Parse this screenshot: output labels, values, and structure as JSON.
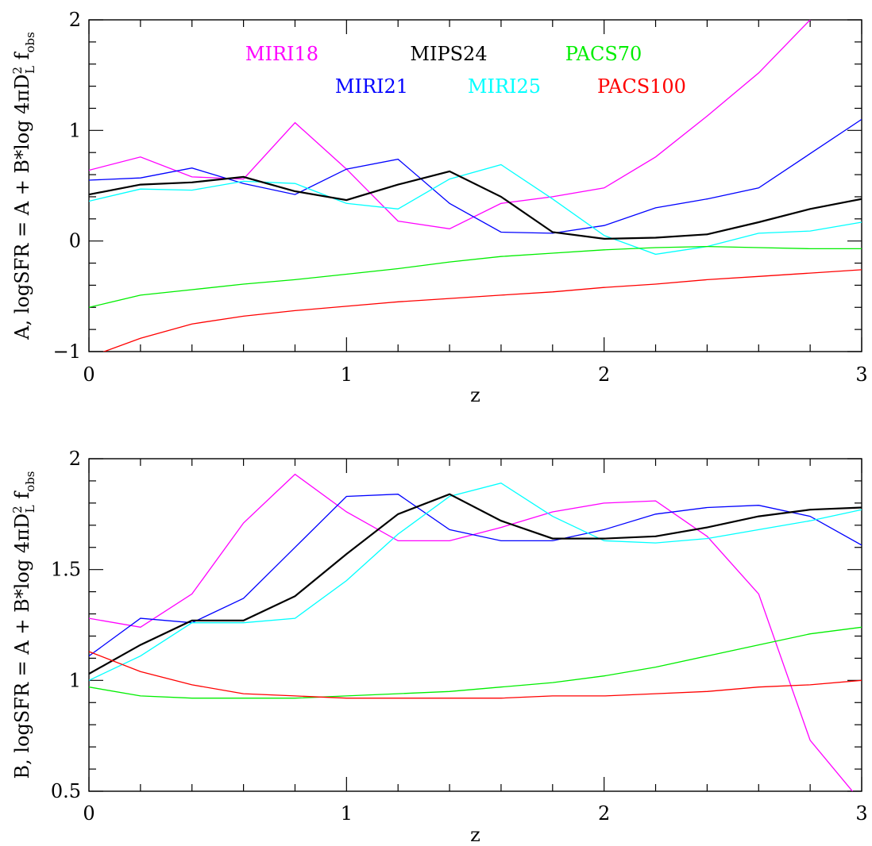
{
  "chart_data": [
    {
      "type": "line",
      "ylabel_parts": {
        "prefix": "A, logSFR = A + B*log 4",
        "pi": "π",
        "d": "D",
        "sup": "2",
        "sub": "L",
        "f": " f",
        "fsub": "obs"
      },
      "xlabel": "z",
      "xlim": [
        0,
        3
      ],
      "ylim": [
        -1,
        2
      ],
      "xticks": [
        0,
        1,
        2,
        3
      ],
      "yticks": [
        -1,
        0,
        1,
        2
      ],
      "xtick_labels": [
        "0",
        "1",
        "2",
        "3"
      ],
      "ytick_labels": [
        "−1",
        "0",
        "1",
        "2"
      ],
      "legend": [
        {
          "name": "MIRI18",
          "color": "#ff00ff"
        },
        {
          "name": "MIPS24",
          "color": "#000000"
        },
        {
          "name": "PACS70",
          "color": "#00ee00"
        },
        {
          "name": "MIRI21",
          "color": "#0000ff"
        },
        {
          "name": "MIRI25",
          "color": "#00ffff"
        },
        {
          "name": "PACS100",
          "color": "#ff0000"
        }
      ],
      "x": [
        0,
        0.2,
        0.4,
        0.6,
        0.8,
        1.0,
        1.2,
        1.4,
        1.6,
        1.8,
        2.0,
        2.2,
        2.4,
        2.6,
        2.8,
        3.0
      ],
      "series": [
        {
          "name": "MIRI18",
          "color": "#ff00ff",
          "width": 1.3,
          "values": [
            0.64,
            0.76,
            0.58,
            0.56,
            1.07,
            0.65,
            0.18,
            0.11,
            0.34,
            0.4,
            0.48,
            0.76,
            1.13,
            1.52,
            2.0,
            2.35
          ]
        },
        {
          "name": "MIRI21",
          "color": "#0000ff",
          "width": 1.3,
          "values": [
            0.55,
            0.57,
            0.66,
            0.52,
            0.42,
            0.65,
            0.74,
            0.34,
            0.08,
            0.07,
            0.14,
            0.3,
            0.38,
            0.48,
            0.79,
            1.1
          ]
        },
        {
          "name": "MIRI25",
          "color": "#00ffff",
          "width": 1.3,
          "values": [
            0.36,
            0.47,
            0.46,
            0.54,
            0.52,
            0.34,
            0.29,
            0.56,
            0.69,
            0.38,
            0.05,
            -0.12,
            -0.05,
            0.07,
            0.09,
            0.17
          ]
        },
        {
          "name": "MIPS24",
          "color": "#000000",
          "width": 2.2,
          "values": [
            0.42,
            0.51,
            0.53,
            0.58,
            0.45,
            0.37,
            0.51,
            0.63,
            0.4,
            0.08,
            0.02,
            0.03,
            0.06,
            0.17,
            0.29,
            0.38
          ]
        },
        {
          "name": "PACS70",
          "color": "#00ee00",
          "width": 1.3,
          "values": [
            -0.6,
            -0.49,
            -0.44,
            -0.39,
            -0.35,
            -0.3,
            -0.25,
            -0.19,
            -0.14,
            -0.11,
            -0.08,
            -0.06,
            -0.05,
            -0.06,
            -0.07,
            -0.07
          ]
        },
        {
          "name": "PACS100",
          "color": "#ff0000",
          "width": 1.3,
          "values": [
            -1.05,
            -0.88,
            -0.75,
            -0.68,
            -0.63,
            -0.59,
            -0.55,
            -0.52,
            -0.49,
            -0.46,
            -0.42,
            -0.39,
            -0.35,
            -0.32,
            -0.29,
            -0.26
          ]
        }
      ]
    },
    {
      "type": "line",
      "ylabel_parts": {
        "prefix": "B, logSFR = A + B*log 4",
        "pi": "π",
        "d": "D",
        "sup": "2",
        "sub": "L",
        "f": " f",
        "fsub": "obs"
      },
      "xlabel": "z",
      "xlim": [
        0,
        3
      ],
      "ylim": [
        0.5,
        2
      ],
      "xticks": [
        0,
        1,
        2,
        3
      ],
      "yticks": [
        0.5,
        1,
        1.5,
        2
      ],
      "xtick_labels": [
        "0",
        "1",
        "2",
        "3"
      ],
      "ytick_labels": [
        "0.5",
        "1",
        "1.5",
        "2"
      ],
      "x": [
        0,
        0.2,
        0.4,
        0.6,
        0.8,
        1.0,
        1.2,
        1.4,
        1.6,
        1.8,
        2.0,
        2.2,
        2.4,
        2.6,
        2.8,
        3.0
      ],
      "series": [
        {
          "name": "MIRI18",
          "color": "#ff00ff",
          "width": 1.3,
          "values": [
            1.28,
            1.24,
            1.39,
            1.71,
            1.93,
            1.76,
            1.63,
            1.63,
            1.69,
            1.76,
            1.8,
            1.81,
            1.65,
            1.39,
            0.73,
            0.45
          ]
        },
        {
          "name": "MIRI21",
          "color": "#0000ff",
          "width": 1.3,
          "values": [
            1.11,
            1.28,
            1.26,
            1.37,
            1.6,
            1.83,
            1.84,
            1.68,
            1.63,
            1.63,
            1.68,
            1.75,
            1.78,
            1.79,
            1.74,
            1.61
          ]
        },
        {
          "name": "MIRI25",
          "color": "#00ffff",
          "width": 1.3,
          "values": [
            1.0,
            1.11,
            1.26,
            1.26,
            1.28,
            1.45,
            1.66,
            1.83,
            1.89,
            1.74,
            1.63,
            1.62,
            1.64,
            1.68,
            1.72,
            1.77
          ]
        },
        {
          "name": "MIPS24",
          "color": "#000000",
          "width": 2.2,
          "values": [
            1.03,
            1.16,
            1.27,
            1.27,
            1.38,
            1.57,
            1.75,
            1.84,
            1.72,
            1.64,
            1.64,
            1.65,
            1.69,
            1.74,
            1.77,
            1.78
          ]
        },
        {
          "name": "PACS70",
          "color": "#00ee00",
          "width": 1.3,
          "values": [
            0.97,
            0.93,
            0.92,
            0.92,
            0.92,
            0.93,
            0.94,
            0.95,
            0.97,
            0.99,
            1.02,
            1.06,
            1.11,
            1.16,
            1.21,
            1.24
          ]
        },
        {
          "name": "PACS100",
          "color": "#ff0000",
          "width": 1.3,
          "values": [
            1.13,
            1.04,
            0.98,
            0.94,
            0.93,
            0.92,
            0.92,
            0.92,
            0.92,
            0.93,
            0.93,
            0.94,
            0.95,
            0.97,
            0.98,
            1.0
          ]
        }
      ]
    }
  ]
}
